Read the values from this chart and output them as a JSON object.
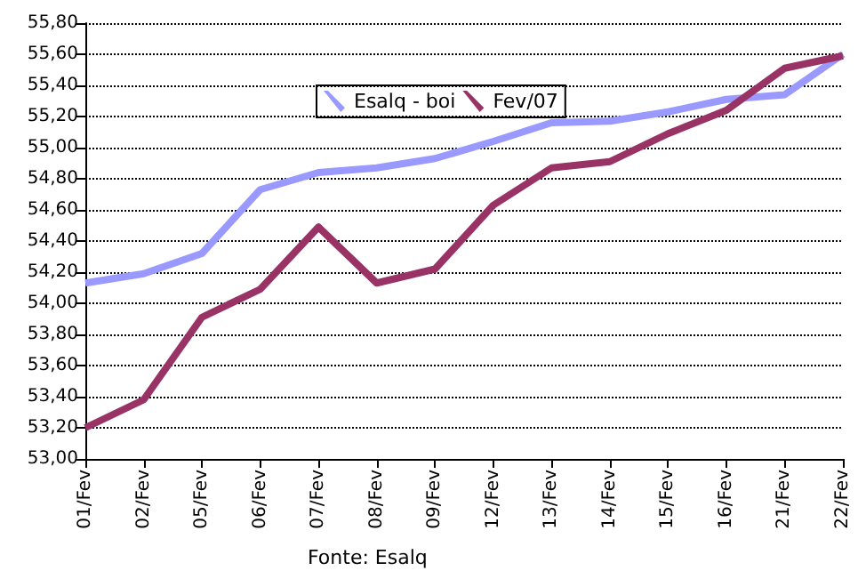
{
  "chart_data": {
    "type": "line",
    "categories": [
      "01/Fev",
      "02/Fev",
      "05/Fev",
      "06/Fev",
      "07/Fev",
      "08/Fev",
      "09/Fev",
      "12/Fev",
      "13/Fev",
      "14/Fev",
      "15/Fev",
      "16/Fev",
      "21/Fev",
      "22/Fev"
    ],
    "series": [
      {
        "name": "Esalq - boi",
        "color": "#9999ff",
        "values": [
          54.13,
          54.19,
          54.32,
          54.73,
          54.84,
          54.87,
          54.93,
          55.04,
          55.16,
          55.17,
          55.23,
          55.31,
          55.34,
          55.6
        ]
      },
      {
        "name": "Fev/07",
        "color": "#993366",
        "values": [
          53.2,
          53.38,
          53.91,
          54.09,
          54.49,
          54.13,
          54.22,
          54.63,
          54.87,
          54.91,
          55.09,
          55.24,
          55.51,
          55.59
        ]
      }
    ],
    "ylim": [
      53,
      55.8
    ],
    "yticks": [
      {
        "value": 53,
        "label": "53,00"
      },
      {
        "value": 53.2,
        "label": "53,20"
      },
      {
        "value": 53.4,
        "label": "53,40"
      },
      {
        "value": 53.6,
        "label": "53,60"
      },
      {
        "value": 53.8,
        "label": "53,80"
      },
      {
        "value": 54,
        "label": "54,00"
      },
      {
        "value": 54.2,
        "label": "54,20"
      },
      {
        "value": 54.4,
        "label": "54,40"
      },
      {
        "value": 54.6,
        "label": "54,60"
      },
      {
        "value": 54.8,
        "label": "54,80"
      },
      {
        "value": 55,
        "label": "55,00"
      },
      {
        "value": 55.2,
        "label": "55,20"
      },
      {
        "value": 55.4,
        "label": "55,40"
      },
      {
        "value": 55.6,
        "label": "55,60"
      },
      {
        "value": 55.8,
        "label": "55,80"
      }
    ],
    "grid": "y",
    "line_style": "solid",
    "marker": "none",
    "legend": "top",
    "annotations": [
      "Fonte: Esalq"
    ]
  }
}
